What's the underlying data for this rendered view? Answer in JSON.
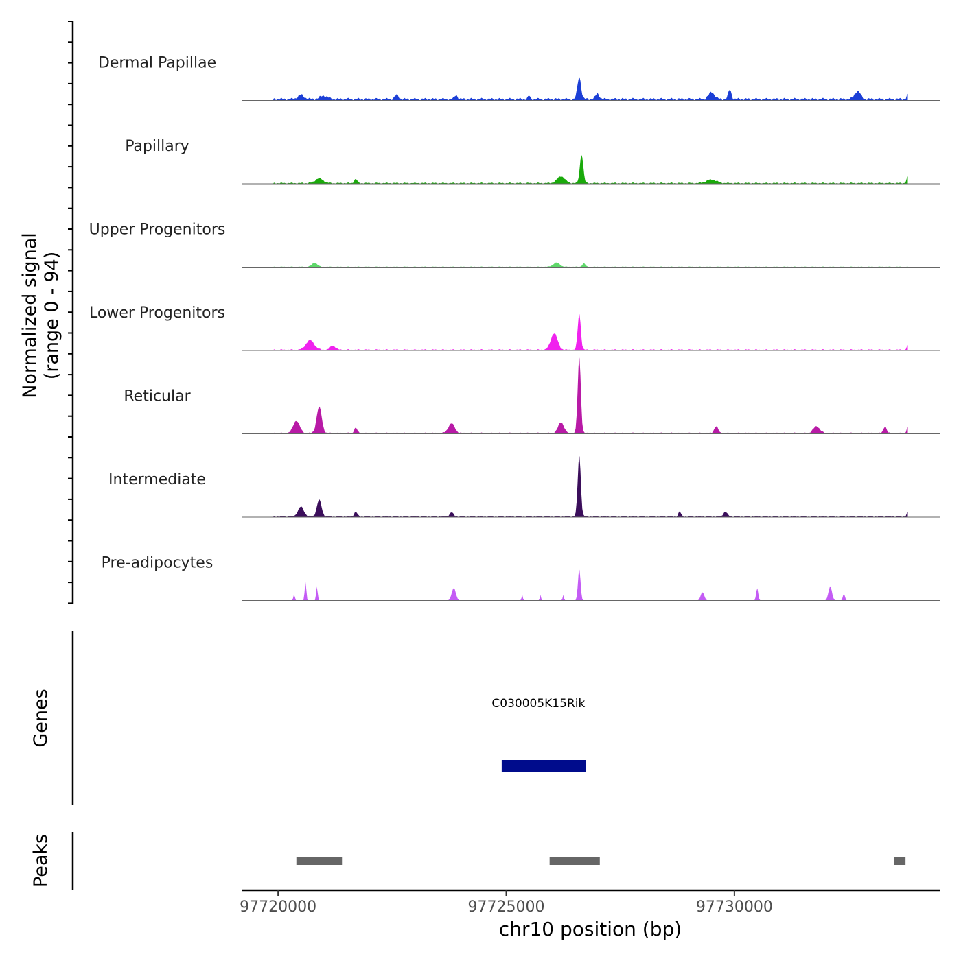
{
  "chart_data": {
    "type": "area",
    "title": "",
    "ylabel_line1": "Normalized signal",
    "ylabel_line2": "(range 0 - 94)",
    "y_range": [
      0,
      94
    ],
    "xlabel": "chr10 position (bp)",
    "chromosome": "chr10",
    "xlim": [
      97719200,
      97734500
    ],
    "x_ticks": [
      97720000,
      97725000,
      97730000
    ],
    "x_tick_labels": [
      "97720000",
      "97725000",
      "97730000"
    ],
    "tracks": [
      {
        "name": "Dermal Papillae",
        "color": "#1c3fd6",
        "baseline": 4,
        "peaks": [
          {
            "x": 97720500,
            "h": 6,
            "w": 250
          },
          {
            "x": 97721000,
            "h": 5,
            "w": 280
          },
          {
            "x": 97722600,
            "h": 6,
            "w": 150
          },
          {
            "x": 97723900,
            "h": 6,
            "w": 120
          },
          {
            "x": 97725500,
            "h": 5,
            "w": 80
          },
          {
            "x": 97726600,
            "h": 32,
            "w": 140
          },
          {
            "x": 97727000,
            "h": 8,
            "w": 150
          },
          {
            "x": 97729500,
            "h": 10,
            "w": 230
          },
          {
            "x": 97729900,
            "h": 14,
            "w": 120
          },
          {
            "x": 97732700,
            "h": 12,
            "w": 220
          },
          {
            "x": 97733800,
            "h": 6,
            "w": 90
          }
        ]
      },
      {
        "name": "Papillary",
        "color": "#1aaa0b",
        "baseline": 2,
        "peaks": [
          {
            "x": 97720900,
            "h": 7,
            "w": 300
          },
          {
            "x": 97721700,
            "h": 6,
            "w": 120
          },
          {
            "x": 97726200,
            "h": 10,
            "w": 300
          },
          {
            "x": 97726650,
            "h": 42,
            "w": 130
          },
          {
            "x": 97729500,
            "h": 5,
            "w": 400
          },
          {
            "x": 97733800,
            "h": 9,
            "w": 100
          }
        ]
      },
      {
        "name": "Upper Progenitors",
        "color": "#5fd86b",
        "baseline": 1,
        "peaks": [
          {
            "x": 97720800,
            "h": 6,
            "w": 200
          },
          {
            "x": 97726100,
            "h": 6,
            "w": 250
          },
          {
            "x": 97726700,
            "h": 5,
            "w": 120
          }
        ]
      },
      {
        "name": "Lower Progenitors",
        "color": "#f022ee",
        "baseline": 2,
        "peaks": [
          {
            "x": 97720700,
            "h": 14,
            "w": 320
          },
          {
            "x": 97721200,
            "h": 6,
            "w": 200
          },
          {
            "x": 97726050,
            "h": 24,
            "w": 260
          },
          {
            "x": 97726600,
            "h": 52,
            "w": 120
          },
          {
            "x": 97733800,
            "h": 6,
            "w": 90
          }
        ]
      },
      {
        "name": "Reticular",
        "color": "#b81aa6",
        "baseline": 2,
        "peaks": [
          {
            "x": 97720400,
            "h": 18,
            "w": 250
          },
          {
            "x": 97720900,
            "h": 38,
            "w": 200
          },
          {
            "x": 97721700,
            "h": 8,
            "w": 120
          },
          {
            "x": 97723800,
            "h": 14,
            "w": 250
          },
          {
            "x": 97726200,
            "h": 16,
            "w": 220
          },
          {
            "x": 97726600,
            "h": 110,
            "w": 120
          },
          {
            "x": 97729600,
            "h": 10,
            "w": 150
          },
          {
            "x": 97731800,
            "h": 10,
            "w": 250
          },
          {
            "x": 97733300,
            "h": 10,
            "w": 120
          },
          {
            "x": 97733800,
            "h": 8,
            "w": 90
          }
        ]
      },
      {
        "name": "Intermediate",
        "color": "#3b0e5b",
        "baseline": 2,
        "peaks": [
          {
            "x": 97720500,
            "h": 14,
            "w": 230
          },
          {
            "x": 97720900,
            "h": 24,
            "w": 180
          },
          {
            "x": 97721700,
            "h": 7,
            "w": 120
          },
          {
            "x": 97723800,
            "h": 6,
            "w": 140
          },
          {
            "x": 97726600,
            "h": 88,
            "w": 120
          },
          {
            "x": 97728800,
            "h": 7,
            "w": 100
          },
          {
            "x": 97729800,
            "h": 7,
            "w": 150
          },
          {
            "x": 97733800,
            "h": 6,
            "w": 90
          }
        ]
      },
      {
        "name": "Pre-adipocytes",
        "color": "#c45cf5",
        "baseline": 0,
        "peaks": [
          {
            "x": 97720600,
            "h": 28,
            "w": 60
          },
          {
            "x": 97720850,
            "h": 20,
            "w": 60
          },
          {
            "x": 97720350,
            "h": 9,
            "w": 60
          },
          {
            "x": 97723850,
            "h": 18,
            "w": 160
          },
          {
            "x": 97725350,
            "h": 8,
            "w": 50
          },
          {
            "x": 97725750,
            "h": 8,
            "w": 50
          },
          {
            "x": 97726250,
            "h": 8,
            "w": 50
          },
          {
            "x": 97726600,
            "h": 45,
            "w": 100
          },
          {
            "x": 97729300,
            "h": 12,
            "w": 140
          },
          {
            "x": 97730500,
            "h": 18,
            "w": 80
          },
          {
            "x": 97732100,
            "h": 20,
            "w": 140
          },
          {
            "x": 97732400,
            "h": 10,
            "w": 80
          }
        ]
      }
    ],
    "genes_label": "Genes",
    "genes": [
      {
        "name": "C030005K15Rik",
        "start": 97724900,
        "end": 97726750,
        "color": "#000c8c"
      }
    ],
    "peaks_label": "Peaks",
    "peak_regions": [
      {
        "start": 97720400,
        "end": 97721400
      },
      {
        "start": 97725950,
        "end": 97727050
      },
      {
        "start": 97733500,
        "end": 97733750
      }
    ],
    "peak_color": "#666666"
  }
}
